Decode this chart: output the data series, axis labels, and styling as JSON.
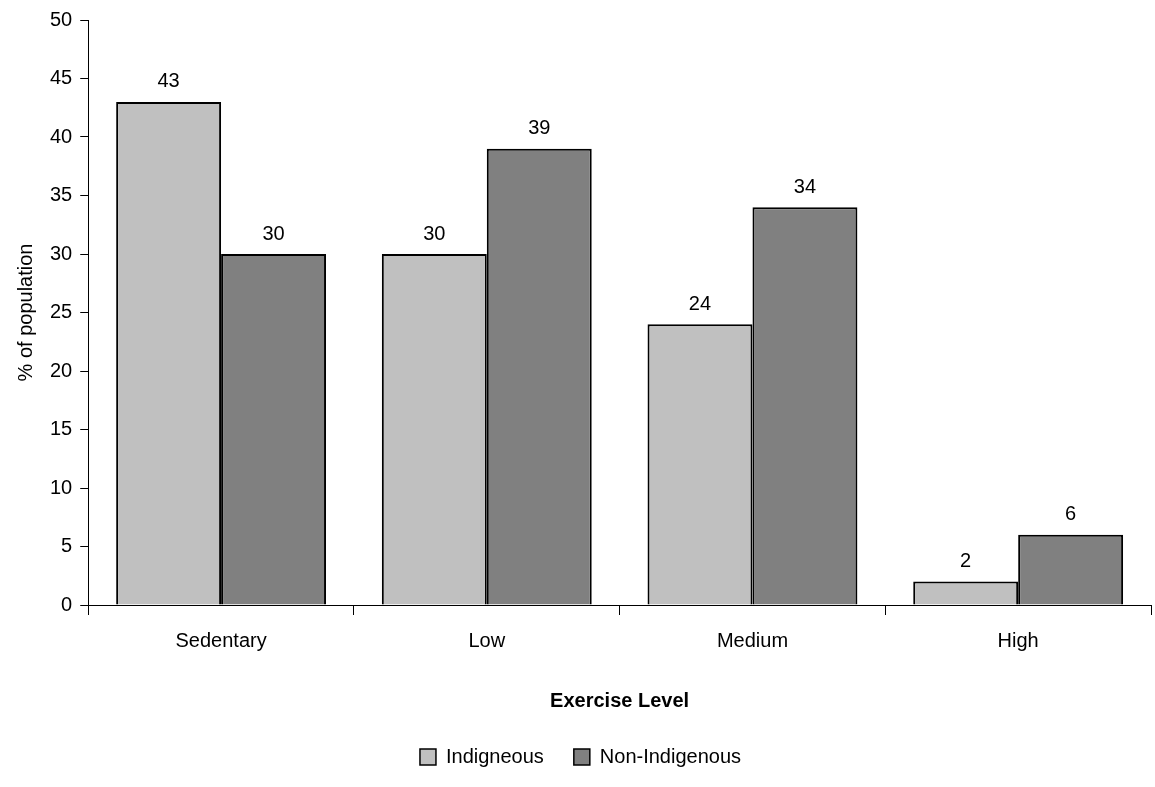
{
  "chart_data": {
    "type": "bar",
    "xlabel": "Exercise Level",
    "ylabel": "% of population",
    "categories": [
      "Sedentary",
      "Low",
      "Medium",
      "High"
    ],
    "series": [
      {
        "name": "Indigneous",
        "color": "#c0c0c0",
        "values": [
          43,
          30,
          24,
          2
        ]
      },
      {
        "name": "Non-Indigenous",
        "color": "#808080",
        "values": [
          30,
          39,
          34,
          6
        ]
      }
    ],
    "ylim": [
      0,
      50
    ],
    "yticks": [
      0,
      5,
      10,
      15,
      20,
      25,
      30,
      35,
      40,
      45,
      50
    ],
    "grid": false,
    "legend": "bottom",
    "data_labels": true
  }
}
